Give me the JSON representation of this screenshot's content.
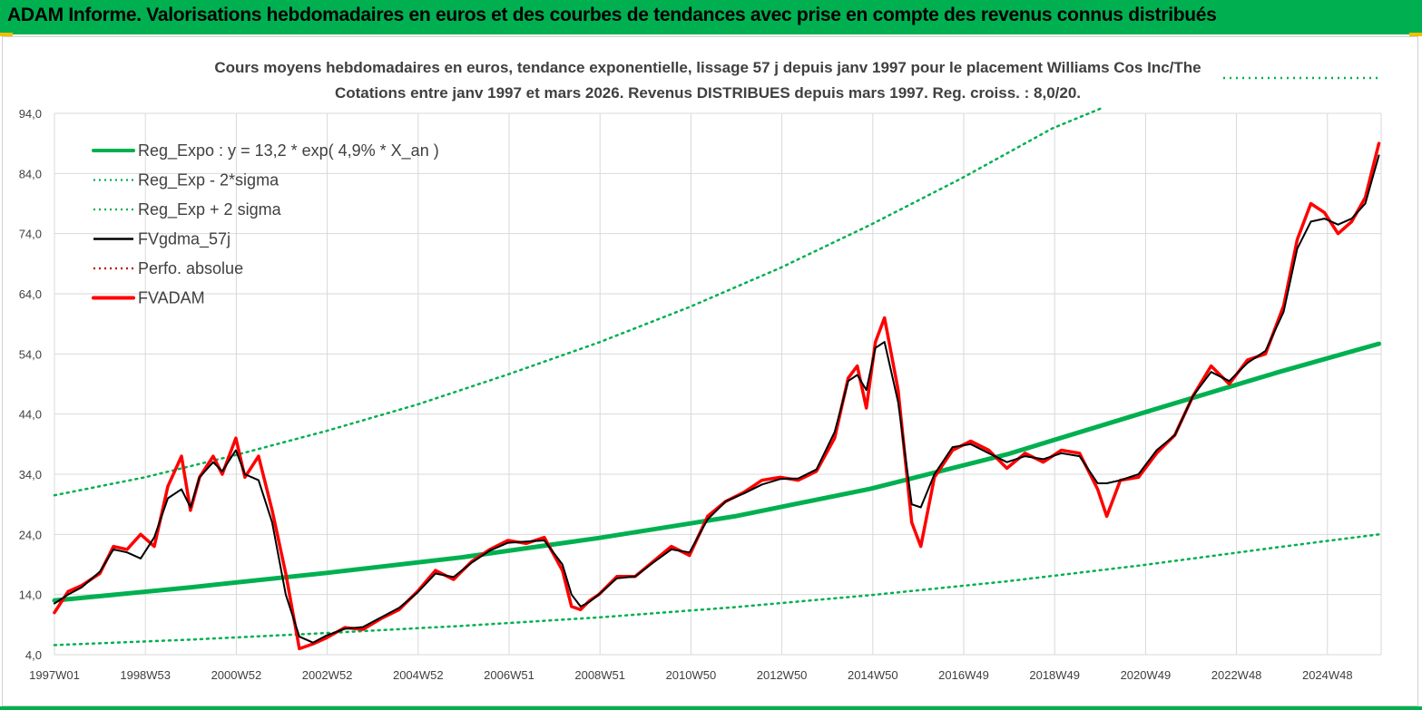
{
  "header": {
    "title": "ADAM Informe. Valorisations hebdomadaires en euros et des courbes de tendances avec prise en compte des revenus connus distribués"
  },
  "colors": {
    "header_bg": "#00b050",
    "reg_expo": "#00b050",
    "band_dotted": "#00b050",
    "fvgdma": "#000000",
    "perfo": "#c00000",
    "fvadam": "#ff0000"
  },
  "chart_data": {
    "type": "line",
    "title_line1": "Cours moyens hebdomadaires en euros, tendance exponentielle, lissage 57 j depuis janv 1997 pour le placement Williams Cos Inc/The",
    "title_line2": "Cotations entre janv 1997 et mars 2026. Revenus DISTRIBUES depuis mars 1997. Reg. croiss. : 8,0/20.",
    "xlabel": "",
    "ylabel": "",
    "ylim": [
      4,
      94
    ],
    "y_ticks": [
      "4,0",
      "14,0",
      "24,0",
      "34,0",
      "44,0",
      "54,0",
      "64,0",
      "74,0",
      "84,0",
      "94,0"
    ],
    "x_ticks": [
      "1997W01",
      "1998W53",
      "2000W52",
      "2002W52",
      "2004W52",
      "2006W51",
      "2008W51",
      "2010W50",
      "2012W50",
      "2014W50",
      "2016W49",
      "2018W49",
      "2020W49",
      "2022W48",
      "2024W48"
    ],
    "grid": true,
    "legend_position": "top-left",
    "legend": [
      {
        "key": "reg",
        "label": "Reg_Expo : y = 13,2 * exp( 4,9% *  X_an )",
        "style": "thick-solid",
        "color": "#00b050"
      },
      {
        "key": "low",
        "label": "Reg_Exp - 2*sigma",
        "style": "dotted",
        "color": "#00b050"
      },
      {
        "key": "high",
        "label": "Reg_Exp + 2 sigma",
        "style": "dotted",
        "color": "#00b050"
      },
      {
        "key": "fvgdma",
        "label": "FVgdma_57j",
        "style": "solid",
        "color": "#000000"
      },
      {
        "key": "perfo",
        "label": "Perfo. absolue",
        "style": "dotted",
        "color": "#c00000"
      },
      {
        "key": "fvadam",
        "label": "FVADAM",
        "style": "thick-solid",
        "color": "#ff0000"
      }
    ],
    "series": [
      {
        "name": "Reg_Expo : y = 13,2 * exp( 4,9% *  X_an )",
        "x": [
          1997.0,
          2000.0,
          2003.0,
          2006.0,
          2009.0,
          2012.0,
          2015.0,
          2018.0,
          2021.0,
          2024.0,
          2026.2
        ],
        "values": [
          13.0,
          15.2,
          17.6,
          20.2,
          23.4,
          27.0,
          31.6,
          37.3,
          44.2,
          51.0,
          55.7
        ]
      },
      {
        "name": "Reg_Exp - 2*sigma",
        "x": [
          1997.0,
          2000.0,
          2003.0,
          2006.0,
          2009.0,
          2012.0,
          2015.0,
          2018.0,
          2021.0,
          2024.0,
          2026.2
        ],
        "values": [
          5.6,
          6.5,
          7.6,
          8.8,
          10.2,
          11.9,
          13.9,
          16.2,
          18.9,
          21.9,
          24.0
        ]
      },
      {
        "name": "Reg_Exp + 2 sigma",
        "x": [
          1997.0,
          1999.0,
          2001.0,
          2003.0,
          2005.0,
          2007.0,
          2009.0,
          2011.0,
          2013.0,
          2015.0,
          2017.0,
          2019.0,
          2020.1
        ],
        "values": [
          30.5,
          33.5,
          37.2,
          41.2,
          45.6,
          50.6,
          55.9,
          61.8,
          68.3,
          75.5,
          83.2,
          91.5,
          95.5
        ]
      },
      {
        "name": "FVADAM",
        "x": [
          1997.0,
          1997.3,
          1997.6,
          1998.0,
          1998.3,
          1998.6,
          1998.9,
          1999.2,
          1999.5,
          1999.8,
          2000.0,
          2000.2,
          2000.5,
          2000.7,
          2001.0,
          2001.2,
          2001.5,
          2001.8,
          2002.1,
          2002.4,
          2002.7,
          2003.0,
          2003.4,
          2003.8,
          2004.2,
          2004.6,
          2005.0,
          2005.4,
          2005.8,
          2006.2,
          2006.6,
          2007.0,
          2007.4,
          2007.8,
          2008.2,
          2008.4,
          2008.6,
          2008.8,
          2009.0,
          2009.4,
          2009.8,
          2010.2,
          2010.6,
          2011.0,
          2011.4,
          2011.8,
          2012.2,
          2012.6,
          2013.0,
          2013.4,
          2013.8,
          2014.2,
          2014.5,
          2014.7,
          2014.9,
          2015.1,
          2015.3,
          2015.6,
          2015.9,
          2016.1,
          2016.4,
          2016.8,
          2017.2,
          2017.6,
          2018.0,
          2018.4,
          2018.8,
          2019.2,
          2019.6,
          2020.0,
          2020.2,
          2020.5,
          2020.9,
          2021.3,
          2021.7,
          2022.1,
          2022.5,
          2022.9,
          2023.3,
          2023.7,
          2024.1,
          2024.4,
          2024.7,
          2025.0,
          2025.3,
          2025.6,
          2025.9,
          2026.2
        ],
        "values": [
          11.0,
          14.5,
          15.5,
          17.5,
          22.0,
          21.5,
          24.0,
          22.0,
          32.0,
          37.0,
          28.0,
          33.5,
          37.0,
          34.0,
          40.0,
          33.5,
          37.0,
          28.0,
          17.5,
          5.0,
          5.8,
          6.8,
          8.5,
          8.2,
          10.0,
          11.5,
          14.5,
          18.0,
          16.5,
          19.5,
          21.5,
          23.0,
          22.5,
          23.5,
          18.0,
          12.0,
          11.5,
          13.0,
          14.0,
          17.0,
          17.0,
          19.5,
          22.0,
          20.5,
          27.0,
          29.5,
          31.0,
          33.0,
          33.5,
          33.0,
          34.5,
          40.0,
          50.0,
          52.0,
          45.0,
          56.0,
          60.0,
          48.0,
          26.0,
          22.0,
          33.5,
          38.0,
          39.5,
          38.0,
          35.0,
          37.5,
          36.0,
          38.0,
          37.5,
          31.5,
          27.0,
          33.0,
          33.5,
          37.5,
          40.5,
          47.0,
          52.0,
          49.0,
          53.0,
          54.0,
          62.0,
          73.0,
          79.0,
          77.5,
          74.0,
          76.0,
          80.0,
          89.0
        ]
      },
      {
        "name": "FVgdma_57j",
        "x": [
          1997.0,
          1997.3,
          1997.6,
          1998.0,
          1998.3,
          1998.6,
          1998.9,
          1999.2,
          1999.5,
          1999.8,
          2000.0,
          2000.2,
          2000.5,
          2000.7,
          2001.0,
          2001.2,
          2001.5,
          2001.8,
          2002.1,
          2002.4,
          2002.7,
          2003.0,
          2003.4,
          2003.8,
          2004.2,
          2004.6,
          2005.0,
          2005.4,
          2005.8,
          2006.2,
          2006.6,
          2007.0,
          2007.4,
          2007.8,
          2008.2,
          2008.4,
          2008.6,
          2008.8,
          2009.0,
          2009.4,
          2009.8,
          2010.2,
          2010.6,
          2011.0,
          2011.4,
          2011.8,
          2012.2,
          2012.6,
          2013.0,
          2013.4,
          2013.8,
          2014.2,
          2014.5,
          2014.7,
          2014.9,
          2015.1,
          2015.3,
          2015.6,
          2015.9,
          2016.1,
          2016.4,
          2016.8,
          2017.2,
          2017.6,
          2018.0,
          2018.4,
          2018.8,
          2019.2,
          2019.6,
          2020.0,
          2020.2,
          2020.5,
          2020.9,
          2021.3,
          2021.7,
          2022.1,
          2022.5,
          2022.9,
          2023.3,
          2023.7,
          2024.1,
          2024.4,
          2024.7,
          2025.0,
          2025.3,
          2025.6,
          2025.9,
          2026.2
        ],
        "values": [
          12.5,
          14.0,
          15.2,
          17.8,
          21.5,
          21.0,
          20.0,
          23.5,
          30.0,
          31.5,
          28.5,
          33.5,
          36.0,
          34.5,
          38.0,
          34.0,
          33.0,
          26.0,
          14.0,
          7.0,
          6.0,
          7.2,
          8.3,
          8.6,
          10.2,
          11.8,
          14.3,
          17.5,
          16.9,
          19.3,
          21.3,
          22.6,
          22.8,
          23.0,
          19.0,
          14.0,
          12.0,
          12.8,
          14.0,
          16.7,
          17.0,
          19.3,
          21.5,
          21.0,
          26.5,
          29.5,
          30.8,
          32.3,
          33.2,
          33.3,
          34.8,
          41.0,
          49.5,
          50.5,
          48.0,
          55.0,
          56.0,
          46.0,
          29.0,
          28.5,
          34.0,
          38.5,
          39.0,
          37.5,
          36.0,
          37.0,
          36.5,
          37.5,
          37.0,
          32.5,
          32.5,
          33.0,
          34.0,
          38.0,
          40.5,
          47.0,
          51.0,
          49.5,
          52.5,
          54.5,
          61.0,
          71.5,
          76.0,
          76.5,
          75.5,
          76.5,
          79.0,
          87.0
        ]
      }
    ]
  }
}
